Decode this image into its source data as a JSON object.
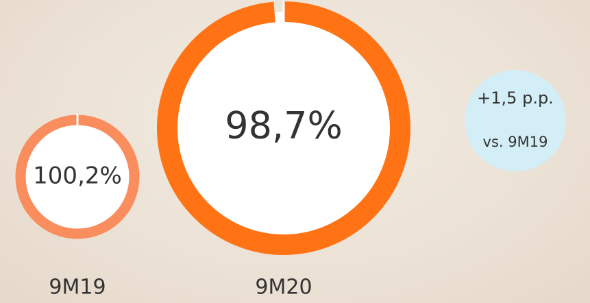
{
  "chart_data": {
    "type": "donut",
    "categories": [
      "9M19",
      "9M20"
    ],
    "values": [
      100.2,
      98.7
    ],
    "value_labels": [
      "100,2%",
      "98,7%"
    ],
    "colors": [
      "#fa8d5e",
      "#ff7315"
    ],
    "annotation": {
      "lines": [
        "+1,5 p.p.",
        "vs. 9M19"
      ],
      "color": "#d4eef7"
    }
  }
}
